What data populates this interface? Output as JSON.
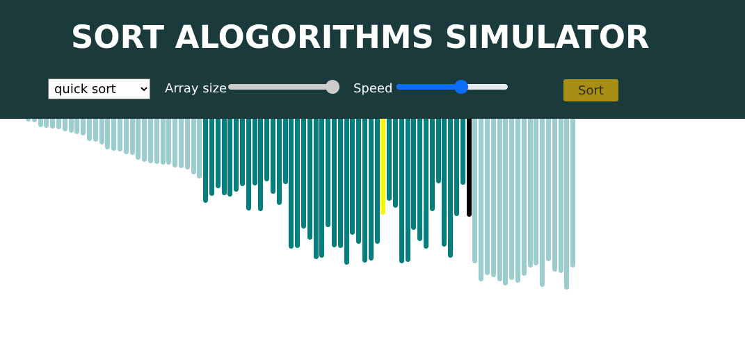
{
  "header": {
    "title": "SORT ALOGORITHMS SIMULATOR",
    "background": "#1b3a3b"
  },
  "controls": {
    "algorithm": {
      "selected": "quick sort"
    },
    "array_size": {
      "label": "Array size",
      "value_fraction": 1.0,
      "fill_color": "#cccccc"
    },
    "speed": {
      "label": "Speed",
      "value_fraction": 0.58,
      "fill_color": "#0d6efd",
      "track_color": "#e9ecef"
    },
    "sort_button": {
      "label": "Sort",
      "color": "#a88f14"
    }
  },
  "visualizer": {
    "colors": {
      "sorted": "#9bcdcf",
      "active": "#047f7d",
      "compare": "#f7f70a",
      "pivot": "#000000"
    },
    "bars": [
      {
        "value": 4,
        "state": "sorted"
      },
      {
        "value": 5,
        "state": "sorted"
      },
      {
        "value": 12,
        "state": "sorted"
      },
      {
        "value": 13,
        "state": "sorted"
      },
      {
        "value": 14,
        "state": "sorted"
      },
      {
        "value": 15,
        "state": "sorted"
      },
      {
        "value": 18,
        "state": "sorted"
      },
      {
        "value": 20,
        "state": "sorted"
      },
      {
        "value": 22,
        "state": "sorted"
      },
      {
        "value": 24,
        "state": "sorted"
      },
      {
        "value": 32,
        "state": "sorted"
      },
      {
        "value": 33,
        "state": "sorted"
      },
      {
        "value": 37,
        "state": "sorted"
      },
      {
        "value": 44,
        "state": "sorted"
      },
      {
        "value": 46,
        "state": "sorted"
      },
      {
        "value": 47,
        "state": "sorted"
      },
      {
        "value": 51,
        "state": "sorted"
      },
      {
        "value": 52,
        "state": "sorted"
      },
      {
        "value": 59,
        "state": "sorted"
      },
      {
        "value": 62,
        "state": "sorted"
      },
      {
        "value": 64,
        "state": "sorted"
      },
      {
        "value": 65,
        "state": "sorted"
      },
      {
        "value": 66,
        "state": "sorted"
      },
      {
        "value": 66,
        "state": "sorted"
      },
      {
        "value": 70,
        "state": "sorted"
      },
      {
        "value": 71,
        "state": "sorted"
      },
      {
        "value": 73,
        "state": "sorted"
      },
      {
        "value": 80,
        "state": "sorted"
      },
      {
        "value": 86,
        "state": "sorted"
      },
      {
        "value": 121,
        "state": "active"
      },
      {
        "value": 111,
        "state": "active"
      },
      {
        "value": 100,
        "state": "active"
      },
      {
        "value": 110,
        "state": "active"
      },
      {
        "value": 112,
        "state": "active"
      },
      {
        "value": 105,
        "state": "active"
      },
      {
        "value": 97,
        "state": "active"
      },
      {
        "value": 132,
        "state": "active"
      },
      {
        "value": 96,
        "state": "active"
      },
      {
        "value": 133,
        "state": "active"
      },
      {
        "value": 90,
        "state": "active"
      },
      {
        "value": 108,
        "state": "active"
      },
      {
        "value": 124,
        "state": "active"
      },
      {
        "value": 94,
        "state": "active"
      },
      {
        "value": 187,
        "state": "active"
      },
      {
        "value": 186,
        "state": "active"
      },
      {
        "value": 158,
        "state": "active"
      },
      {
        "value": 174,
        "state": "active"
      },
      {
        "value": 202,
        "state": "active"
      },
      {
        "value": 200,
        "state": "active"
      },
      {
        "value": 156,
        "state": "active"
      },
      {
        "value": 185,
        "state": "active"
      },
      {
        "value": 186,
        "state": "active"
      },
      {
        "value": 210,
        "state": "active"
      },
      {
        "value": 167,
        "state": "active"
      },
      {
        "value": 180,
        "state": "active"
      },
      {
        "value": 207,
        "state": "active"
      },
      {
        "value": 204,
        "state": "active"
      },
      {
        "value": 180,
        "state": "active"
      },
      {
        "value": 138,
        "state": "compare"
      },
      {
        "value": 118,
        "state": "active"
      },
      {
        "value": 128,
        "state": "active"
      },
      {
        "value": 208,
        "state": "active"
      },
      {
        "value": 206,
        "state": "active"
      },
      {
        "value": 160,
        "state": "active"
      },
      {
        "value": 176,
        "state": "active"
      },
      {
        "value": 187,
        "state": "active"
      },
      {
        "value": 133,
        "state": "active"
      },
      {
        "value": 93,
        "state": "active"
      },
      {
        "value": 184,
        "state": "active"
      },
      {
        "value": 200,
        "state": "active"
      },
      {
        "value": 140,
        "state": "active"
      },
      {
        "value": 95,
        "state": "active"
      },
      {
        "value": 141,
        "state": "pivot"
      },
      {
        "value": 208,
        "state": "sorted"
      },
      {
        "value": 234,
        "state": "sorted"
      },
      {
        "value": 225,
        "state": "sorted"
      },
      {
        "value": 228,
        "state": "sorted"
      },
      {
        "value": 234,
        "state": "sorted"
      },
      {
        "value": 240,
        "state": "sorted"
      },
      {
        "value": 232,
        "state": "sorted"
      },
      {
        "value": 236,
        "state": "sorted"
      },
      {
        "value": 226,
        "state": "sorted"
      },
      {
        "value": 214,
        "state": "sorted"
      },
      {
        "value": 211,
        "state": "sorted"
      },
      {
        "value": 242,
        "state": "sorted"
      },
      {
        "value": 205,
        "state": "sorted"
      },
      {
        "value": 220,
        "state": "sorted"
      },
      {
        "value": 222,
        "state": "sorted"
      },
      {
        "value": 246,
        "state": "sorted"
      },
      {
        "value": 214,
        "state": "sorted"
      }
    ]
  }
}
